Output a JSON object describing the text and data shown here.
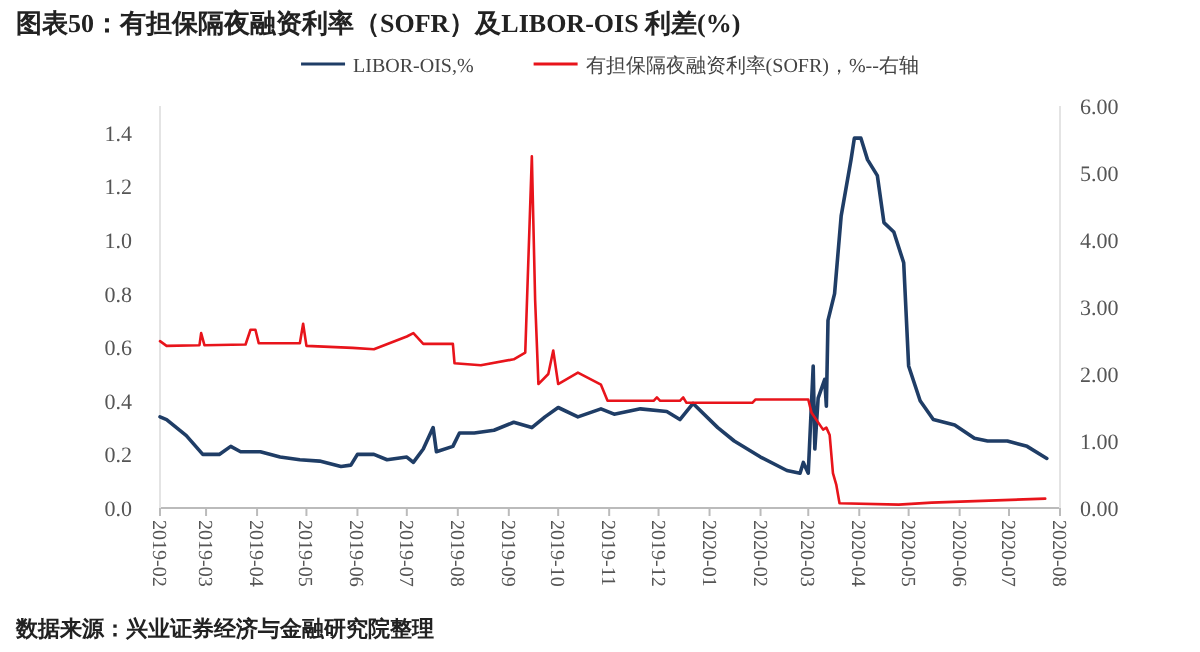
{
  "chart_data": {
    "type": "line",
    "title": "图表50：有担保隔夜融资利率（SOFR）及LIBOR-OIS 利差(%)",
    "annotations": [
      "数据来源：兴业证券经济与金融研究院整理"
    ],
    "legend": "top",
    "grid": false,
    "xlim": [
      "2019-02",
      "2020-08"
    ],
    "xticks": [
      "2019-02",
      "2019-03",
      "2019-04",
      "2019-05",
      "2019-06",
      "2019-07",
      "2019-08",
      "2019-09",
      "2019-10",
      "2019-11",
      "2019-12",
      "2020-01",
      "2020-02",
      "2020-03",
      "2020-04",
      "2020-05",
      "2020-06",
      "2020-07",
      "2020-08"
    ],
    "ylim": [
      0,
      1.5
    ],
    "yticks": [
      {
        "value": 0,
        "label": "0.0"
      },
      {
        "value": 0.2,
        "label": "0.2"
      },
      {
        "value": 0.4,
        "label": "0.4"
      },
      {
        "value": 0.6,
        "label": "0.6"
      },
      {
        "value": 0.8,
        "label": "0.8"
      },
      {
        "value": 1,
        "label": "1.0"
      },
      {
        "value": 1.2,
        "label": "1.2"
      },
      {
        "value": 1.4,
        "label": "1.4"
      }
    ],
    "y2lim": [
      0,
      6
    ],
    "y2ticks": [
      {
        "value": 0,
        "label": "0.00"
      },
      {
        "value": 1,
        "label": "1.00"
      },
      {
        "value": 2,
        "label": "2.00"
      },
      {
        "value": 3,
        "label": "3.00"
      },
      {
        "value": 4,
        "label": "4.00"
      },
      {
        "value": 5,
        "label": "5.00"
      },
      {
        "value": 6,
        "label": "6.00"
      }
    ],
    "series": [
      {
        "name": "LIBOR-OIS,%",
        "color": "#1f3d66",
        "x": [
          "2019-02-01",
          "2019-02-05",
          "2019-02-11",
          "2019-02-17",
          "2019-02-27",
          "2019-03-09",
          "2019-03-16",
          "2019-03-22",
          "2019-04-03",
          "2019-04-15",
          "2019-04-27",
          "2019-05-09",
          "2019-05-22",
          "2019-05-28",
          "2019-06-01",
          "2019-06-11",
          "2019-06-19",
          "2019-07-01",
          "2019-07-05",
          "2019-07-11",
          "2019-07-17",
          "2019-07-19",
          "2019-07-29",
          "2019-08-02",
          "2019-08-11",
          "2019-08-23",
          "2019-09-04",
          "2019-09-15",
          "2019-09-23",
          "2019-10-01",
          "2019-10-13",
          "2019-10-27",
          "2019-11-04",
          "2019-11-20",
          "2019-12-06",
          "2019-12-14",
          "2019-12-22",
          "2020-01-06",
          "2020-01-16",
          "2020-02-01",
          "2020-02-17",
          "2020-02-25",
          "2020-02-27",
          "2020-03-01",
          "2020-03-04",
          "2020-03-05",
          "2020-03-07",
          "2020-03-11",
          "2020-03-12",
          "2020-03-13",
          "2020-03-17",
          "2020-03-21",
          "2020-03-27",
          "2020-03-29",
          "2020-04-02",
          "2020-04-06",
          "2020-04-12",
          "2020-04-16",
          "2020-04-22",
          "2020-04-28",
          "2020-05-01",
          "2020-05-08",
          "2020-05-16",
          "2020-05-29",
          "2020-06-10",
          "2020-06-18",
          "2020-06-30",
          "2020-07-12",
          "2020-07-24"
        ],
        "values": [
          0.34,
          0.33,
          0.3,
          0.27,
          0.2,
          0.2,
          0.23,
          0.21,
          0.21,
          0.19,
          0.18,
          0.175,
          0.155,
          0.16,
          0.2,
          0.2,
          0.18,
          0.19,
          0.17,
          0.22,
          0.3,
          0.21,
          0.23,
          0.28,
          0.28,
          0.29,
          0.32,
          0.3,
          0.34,
          0.375,
          0.34,
          0.37,
          0.35,
          0.37,
          0.36,
          0.33,
          0.39,
          0.3,
          0.25,
          0.19,
          0.14,
          0.13,
          0.17,
          0.13,
          0.53,
          0.22,
          0.41,
          0.48,
          0.38,
          0.7,
          0.8,
          1.09,
          1.3,
          1.38,
          1.38,
          1.3,
          1.24,
          1.065,
          1.03,
          0.915,
          0.53,
          0.4,
          0.33,
          0.31,
          0.26,
          0.25,
          0.25,
          0.23,
          0.185
        ]
      },
      {
        "name": "有担保隔夜融资利率(SOFR)，%--右轴",
        "color": "#e8141b",
        "axis": "y2",
        "x": [
          "2019-02-01",
          "2019-02-05",
          "2019-02-25",
          "2019-02-26",
          "2019-02-28",
          "2019-03-25",
          "2019-03-28",
          "2019-03-31",
          "2019-04-02",
          "2019-04-27",
          "2019-04-29",
          "2019-05-01",
          "2019-05-29",
          "2019-06-11",
          "2019-07-01",
          "2019-07-05",
          "2019-07-11",
          "2019-07-29",
          "2019-07-30",
          "2019-08-15",
          "2019-09-04",
          "2019-09-11",
          "2019-09-15",
          "2019-09-17",
          "2019-09-19",
          "2019-09-25",
          "2019-09-28",
          "2019-10-01",
          "2019-10-13",
          "2019-10-27",
          "2019-10-31",
          "2019-11-28",
          "2019-11-30",
          "2019-12-02",
          "2019-12-14",
          "2019-12-16",
          "2019-12-18",
          "2020-01-27",
          "2020-01-29",
          "2020-03-01",
          "2020-03-03",
          "2020-03-10",
          "2020-03-12",
          "2020-03-14",
          "2020-03-16",
          "2020-03-18",
          "2020-03-20",
          "2020-04-25",
          "2020-05-15",
          "2020-07-23"
        ],
        "values": [
          2.49,
          2.42,
          2.43,
          2.61,
          2.43,
          2.44,
          2.66,
          2.66,
          2.46,
          2.46,
          2.75,
          2.42,
          2.39,
          2.37,
          2.56,
          2.61,
          2.45,
          2.45,
          2.16,
          2.13,
          2.22,
          2.32,
          5.25,
          3.1,
          1.85,
          2.0,
          2.35,
          1.85,
          2.02,
          1.84,
          1.6,
          1.6,
          1.65,
          1.6,
          1.6,
          1.65,
          1.57,
          1.57,
          1.62,
          1.62,
          1.42,
          1.17,
          1.2,
          1.09,
          0.52,
          0.35,
          0.07,
          0.05,
          0.08,
          0.14
        ]
      }
    ]
  }
}
